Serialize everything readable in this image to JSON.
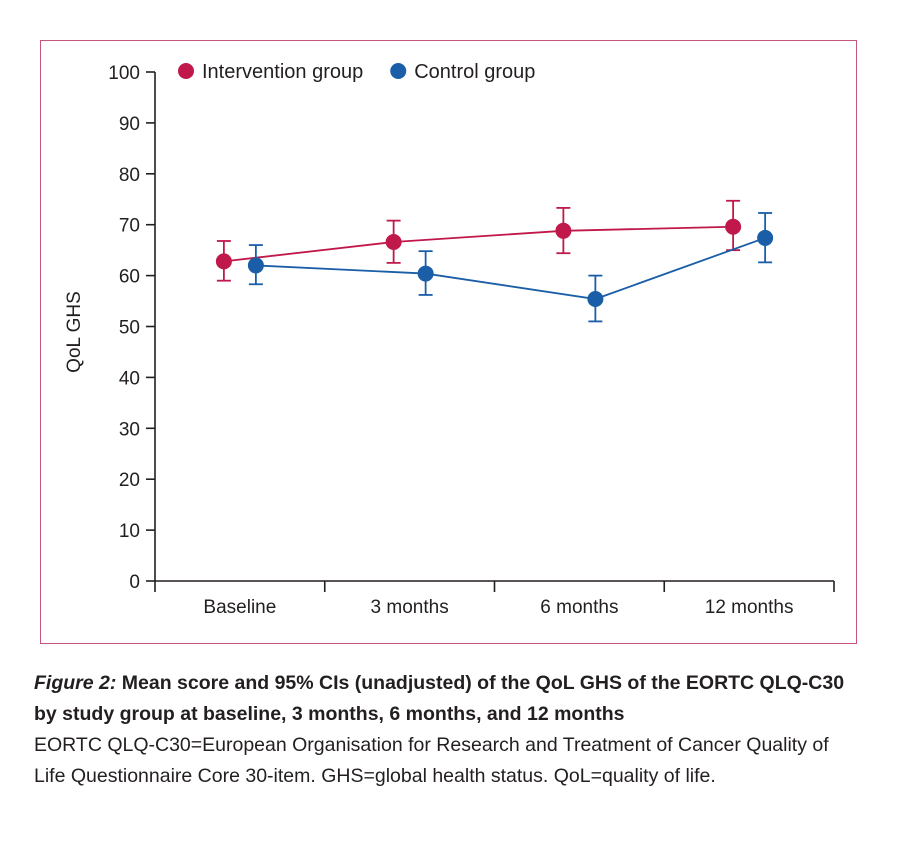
{
  "chart_data": {
    "type": "line",
    "ylabel": "QoL GHS",
    "xlabel": "",
    "ylim": [
      0,
      100
    ],
    "yticks": [
      0,
      10,
      20,
      30,
      40,
      50,
      60,
      70,
      80,
      90,
      100
    ],
    "categories": [
      "Baseline",
      "3 months",
      "6 months",
      "12 months"
    ],
    "legend_position": "top-left",
    "error_bars": "95% CI",
    "series": [
      {
        "name": "Intervention group",
        "color": "#c0184a",
        "values": [
          62.8,
          66.6,
          68.8,
          69.6
        ],
        "ci_lower": [
          59.0,
          62.5,
          64.4,
          65.0
        ],
        "ci_upper": [
          66.8,
          70.8,
          73.3,
          74.7
        ]
      },
      {
        "name": "Control group",
        "color": "#1a5ea8",
        "values": [
          62.0,
          60.4,
          55.4,
          67.4
        ],
        "ci_lower": [
          58.3,
          56.2,
          51.0,
          62.6
        ],
        "ci_upper": [
          66.0,
          64.8,
          60.0,
          72.3
        ]
      }
    ]
  },
  "caption": {
    "label": "Figure 2:",
    "title": "Mean score and 95% CIs (unadjusted) of the QoL GHS of the EORTC QLQ-C30 by study group at baseline, 3 months, 6 months, and 12 months",
    "body": "EORTC QLQ-C30=European Organisation for Research and Treatment of Cancer Quality of Life Questionnaire Core 30-item. GHS=global health status. QoL=quality of life."
  },
  "colors": {
    "frame_border": "#c8557a",
    "axis": "#231f20"
  }
}
